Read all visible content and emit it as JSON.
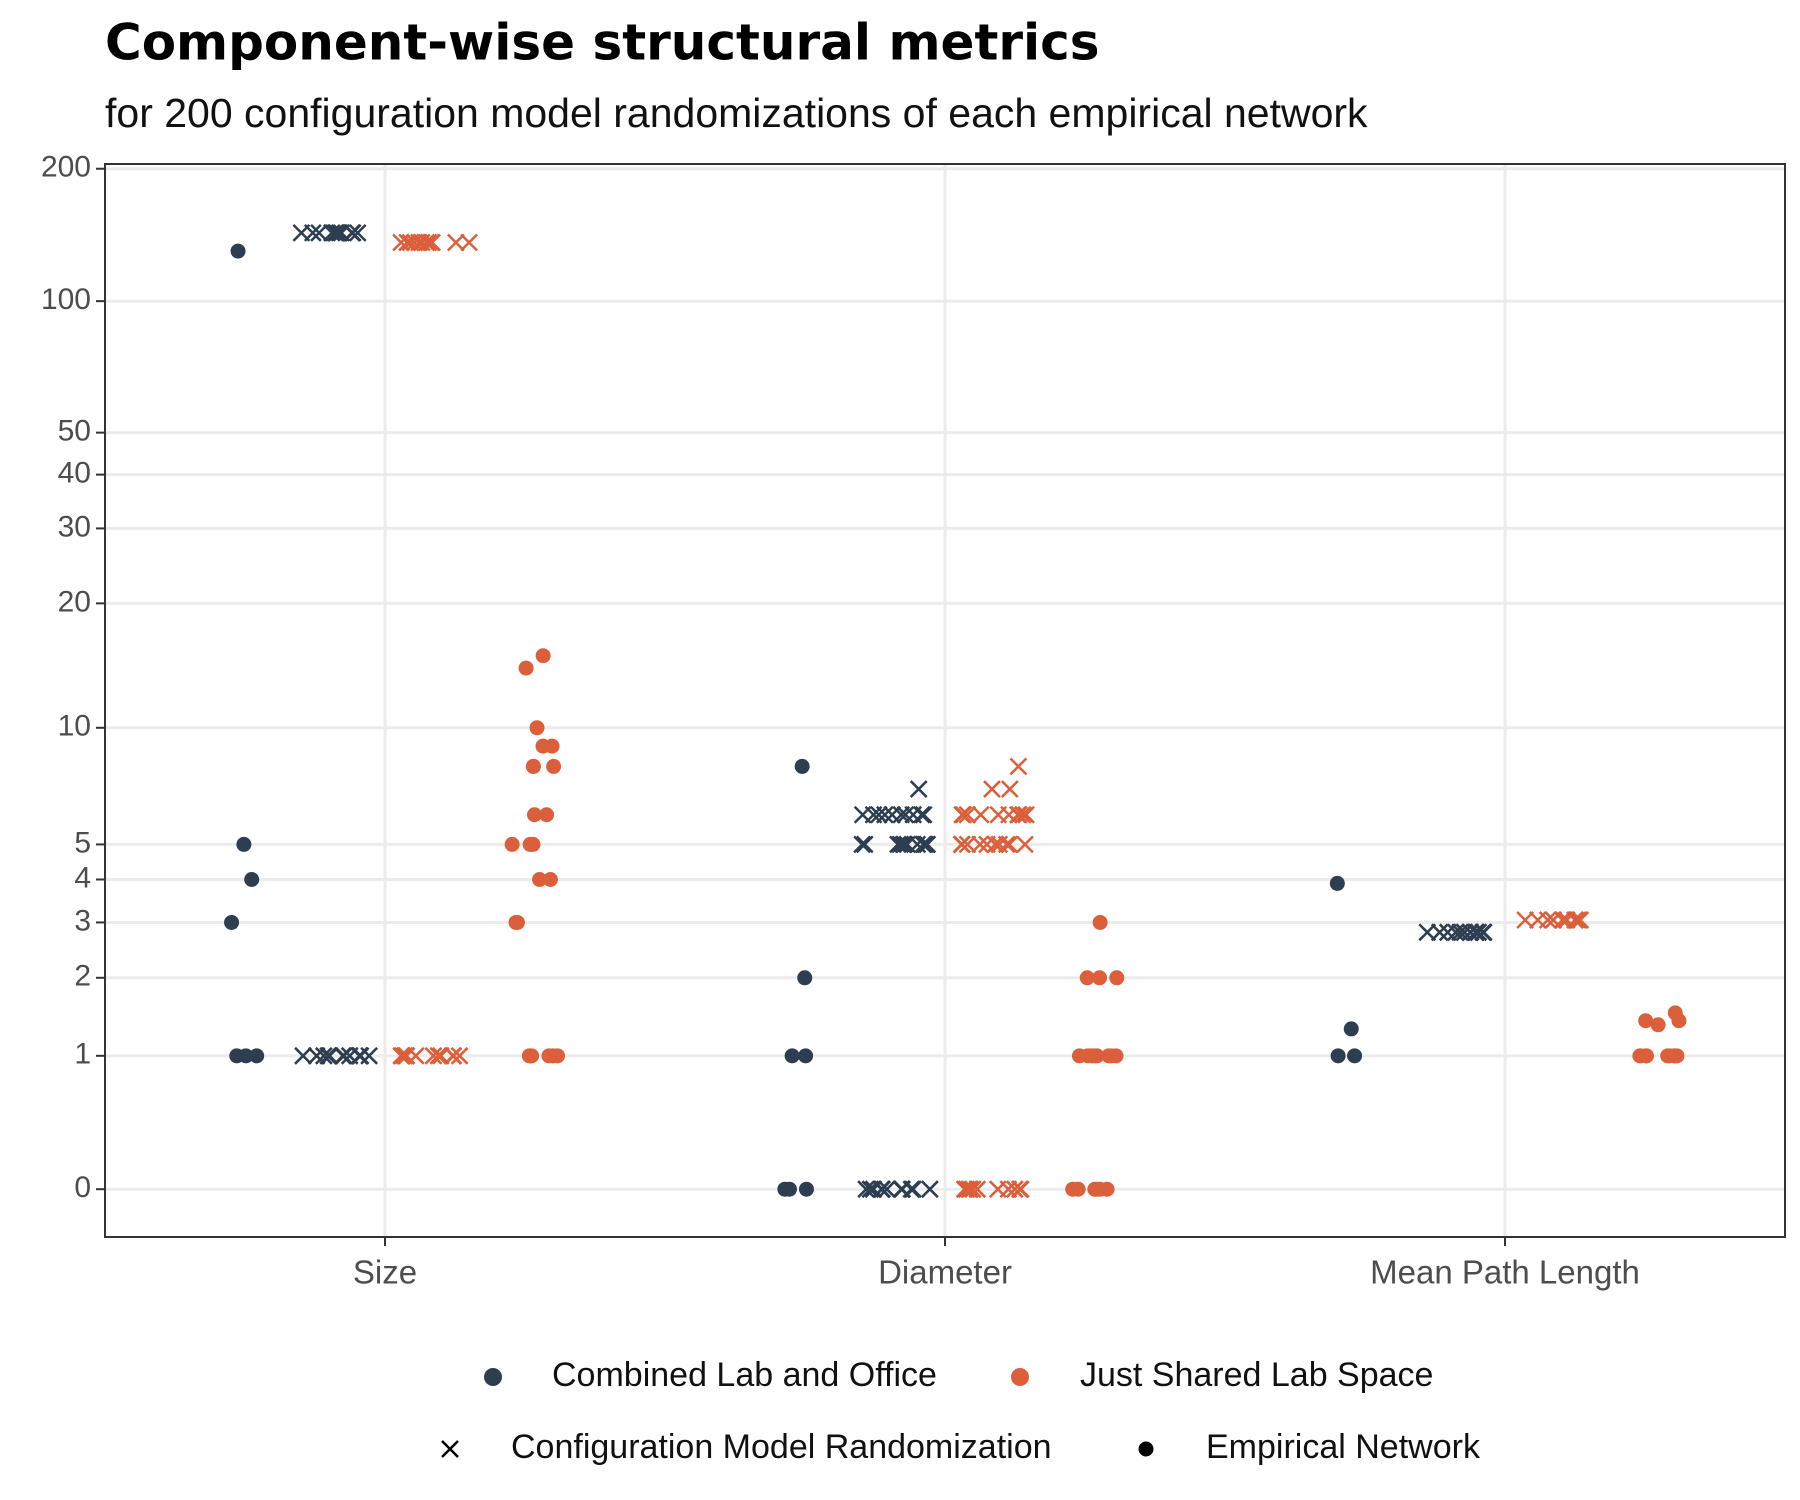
{
  "chart_data": {
    "type": "strip",
    "title": "Component-wise structural metrics",
    "subtitle": "for 200 configuration model randomizations of each empirical network",
    "categories": [
      "Size",
      "Diameter",
      "Mean Path Length"
    ],
    "y_scale": "log1p",
    "ylim": [
      -0.22,
      205
    ],
    "yticks": [
      0,
      1,
      2,
      3,
      4,
      5,
      10,
      20,
      30,
      40,
      50,
      100,
      200
    ],
    "grid": true,
    "shapes": [
      {
        "name": "Configuration Model Randomization",
        "marker": "x"
      },
      {
        "name": "Empirical Network",
        "marker": "dot"
      }
    ],
    "series": [
      {
        "name": "Combined Lab and Office",
        "color": "#2d3e50",
        "by_shape": [
          [
            [
              143,
              143,
              143,
              143,
              143,
              143,
              143,
              143,
              143,
              143,
              143,
              143,
              1,
              1,
              1,
              1,
              1,
              1,
              1,
              1,
              1,
              1,
              1,
              1
            ],
            [
              7,
              6,
              6,
              6,
              6,
              6,
              6,
              6,
              6,
              6,
              6,
              5,
              5,
              5,
              5,
              5,
              5,
              5,
              5,
              5,
              5,
              5,
              5,
              0,
              0,
              0,
              0,
              0,
              0,
              0,
              0,
              0,
              0,
              0,
              0
            ],
            [
              2.8,
              2.8,
              2.8,
              2.8,
              2.8,
              2.8,
              2.8,
              2.8,
              2.8,
              2.8,
              2.8,
              2.8,
              2.8,
              2.8
            ]
          ],
          [
            [
              130,
              1,
              1,
              1,
              3,
              4,
              5
            ],
            [
              8,
              2,
              1,
              1,
              0,
              0,
              0
            ],
            [
              3.9,
              1.3,
              1,
              1
            ]
          ]
        ]
      },
      {
        "name": "Just Shared Lab Space",
        "color": "#dc5f3b",
        "by_shape": [
          [
            [
              136,
              136,
              136,
              136,
              136,
              136,
              136,
              136,
              136,
              136,
              136,
              136,
              1,
              1,
              1,
              1,
              1,
              1,
              1,
              1,
              1,
              1,
              1,
              1
            ],
            [
              8,
              7,
              7,
              6,
              6,
              6,
              6,
              6,
              6,
              6,
              6,
              6,
              6,
              5,
              5,
              5,
              5,
              5,
              5,
              5,
              5,
              5,
              5,
              5,
              0,
              0,
              0,
              0,
              0,
              0,
              0,
              0,
              0,
              0,
              0,
              0
            ],
            [
              3.05,
              3.05,
              3.05,
              3.05,
              3.05,
              3.05,
              3.05,
              3.05,
              3.05,
              3.05,
              3.05,
              3.05,
              3.05,
              3.05
            ]
          ],
          [
            [
              15,
              14,
              10,
              9,
              9,
              8,
              8,
              8,
              6,
              6,
              5,
              5,
              5,
              4,
              4,
              3,
              3,
              1,
              1,
              1,
              1,
              1,
              1
            ],
            [
              3,
              2,
              2,
              2,
              1,
              1,
              1,
              1,
              1,
              1,
              1,
              1,
              0,
              0,
              0,
              0,
              0,
              0
            ],
            [
              1.5,
              1.4,
              1.4,
              1.35,
              1,
              1,
              1,
              1,
              1,
              1,
              1,
              1,
              1,
              1
            ]
          ]
        ]
      }
    ]
  }
}
